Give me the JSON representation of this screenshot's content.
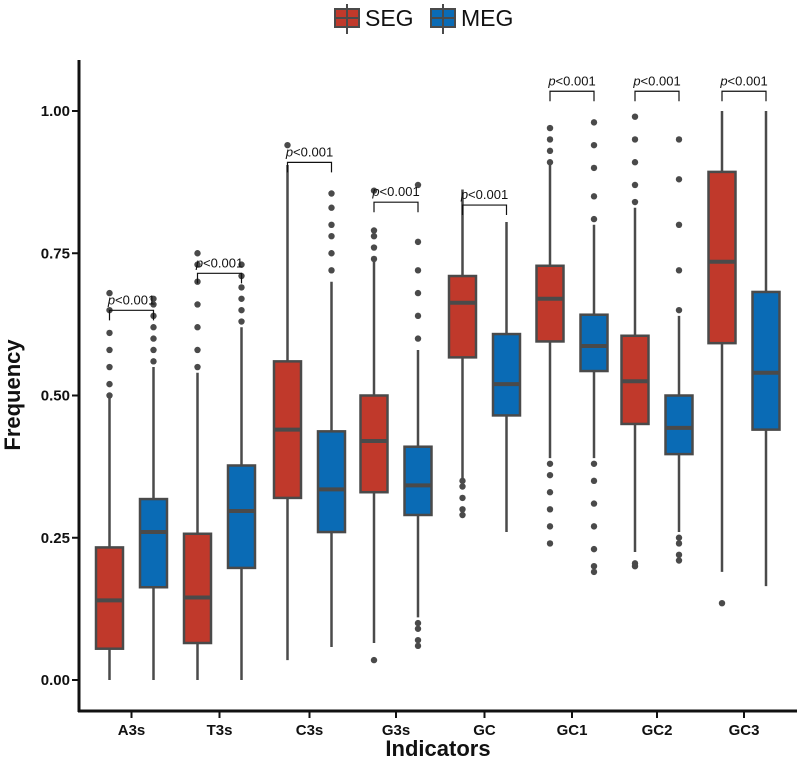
{
  "colors": {
    "SEG": "#c0392b",
    "MEG": "#0a6bb5",
    "line": "#4a4a4a",
    "axis": "#111111"
  },
  "legend": {
    "items": [
      {
        "label": "SEG",
        "color": "#c0392b"
      },
      {
        "label": "MEG",
        "color": "#0a6bb5"
      }
    ]
  },
  "chart_data": {
    "type": "boxplot",
    "title": "",
    "xlabel": "Indicators",
    "ylabel": "Frequency",
    "ylim": [
      0,
      1.07
    ],
    "yticks": [
      0.0,
      0.25,
      0.5,
      0.75,
      1.0
    ],
    "ytick_labels": [
      "0.00",
      "0.25",
      "0.50",
      "0.75",
      "1.00"
    ],
    "categories": [
      "A3s",
      "T3s",
      "C3s",
      "G3s",
      "GC",
      "GC1",
      "GC2",
      "GC3"
    ],
    "significance_label": "p<0.001",
    "series": [
      {
        "name": "SEG",
        "boxes": [
          {
            "min": 0.0,
            "q1": 0.055,
            "median": 0.14,
            "q3": 0.233,
            "max": 0.495,
            "outliers": [
              0.5,
              0.52,
              0.55,
              0.58,
              0.61,
              0.65,
              0.68
            ]
          },
          {
            "min": 0.0,
            "q1": 0.065,
            "median": 0.145,
            "q3": 0.257,
            "max": 0.54,
            "outliers": [
              0.55,
              0.58,
              0.62,
              0.66,
              0.7,
              0.73,
              0.75
            ]
          },
          {
            "min": 0.035,
            "q1": 0.32,
            "median": 0.44,
            "q3": 0.56,
            "max": 0.905,
            "outliers": [
              0.94
            ]
          },
          {
            "min": 0.065,
            "q1": 0.33,
            "median": 0.42,
            "q3": 0.5,
            "max": 0.735,
            "outliers": [
              0.035,
              0.74,
              0.76,
              0.78,
              0.79,
              0.86
            ]
          },
          {
            "min": 0.355,
            "q1": 0.567,
            "median": 0.663,
            "q3": 0.71,
            "max": 0.862,
            "outliers": [
              0.29,
              0.3,
              0.32,
              0.34,
              0.35
            ]
          },
          {
            "min": 0.39,
            "q1": 0.595,
            "median": 0.67,
            "q3": 0.728,
            "max": 0.905,
            "outliers": [
              0.24,
              0.27,
              0.3,
              0.33,
              0.36,
              0.38,
              0.91,
              0.93,
              0.95,
              0.97
            ]
          },
          {
            "min": 0.225,
            "q1": 0.45,
            "median": 0.525,
            "q3": 0.605,
            "max": 0.83,
            "outliers": [
              0.2,
              0.205,
              0.84,
              0.87,
              0.91,
              0.95,
              0.99
            ]
          },
          {
            "min": 0.19,
            "q1": 0.592,
            "median": 0.735,
            "q3": 0.893,
            "max": 1.0,
            "outliers": [
              0.135
            ]
          }
        ]
      },
      {
        "name": "MEG",
        "boxes": [
          {
            "min": 0.0,
            "q1": 0.163,
            "median": 0.26,
            "q3": 0.318,
            "max": 0.55,
            "outliers": [
              0.56,
              0.58,
              0.6,
              0.62,
              0.64,
              0.66,
              0.67
            ]
          },
          {
            "min": 0.0,
            "q1": 0.197,
            "median": 0.297,
            "q3": 0.377,
            "max": 0.62,
            "outliers": [
              0.63,
              0.65,
              0.67,
              0.69,
              0.71,
              0.73
            ]
          },
          {
            "min": 0.058,
            "q1": 0.26,
            "median": 0.335,
            "q3": 0.437,
            "max": 0.7,
            "outliers": [
              0.72,
              0.75,
              0.78,
              0.8,
              0.83,
              0.855
            ]
          },
          {
            "min": 0.11,
            "q1": 0.29,
            "median": 0.342,
            "q3": 0.41,
            "max": 0.58,
            "outliers": [
              0.06,
              0.07,
              0.09,
              0.1,
              0.6,
              0.64,
              0.68,
              0.72,
              0.77,
              0.87
            ]
          },
          {
            "min": 0.26,
            "q1": 0.465,
            "median": 0.52,
            "q3": 0.608,
            "max": 0.805,
            "outliers": []
          },
          {
            "min": 0.39,
            "q1": 0.543,
            "median": 0.587,
            "q3": 0.642,
            "max": 0.8,
            "outliers": [
              0.19,
              0.2,
              0.23,
              0.27,
              0.31,
              0.35,
              0.38,
              0.81,
              0.85,
              0.9,
              0.94,
              0.98
            ]
          },
          {
            "min": 0.26,
            "q1": 0.397,
            "median": 0.443,
            "q3": 0.5,
            "max": 0.64,
            "outliers": [
              0.21,
              0.22,
              0.24,
              0.25,
              0.65,
              0.72,
              0.8,
              0.88,
              0.95
            ]
          },
          {
            "min": 0.165,
            "q1": 0.44,
            "median": 0.54,
            "q3": 0.682,
            "max": 1.0,
            "outliers": []
          }
        ]
      }
    ],
    "brackets": [
      {
        "category": "A3s",
        "y": 0.72,
        "label": "p<0.001"
      },
      {
        "category": "T3s",
        "y": 0.785,
        "label": "p<0.001"
      },
      {
        "category": "C3s",
        "y": 0.98,
        "label": "p<0.001"
      },
      {
        "category": "G3s",
        "y": 0.91,
        "label": "p<0.001"
      },
      {
        "category": "GC",
        "y": 0.905,
        "label": "p<0.001"
      },
      {
        "category": "GC1",
        "y": 1.105,
        "label": "p<0.001"
      },
      {
        "category": "GC2",
        "y": 1.105,
        "label": "p<0.001"
      },
      {
        "category": "GC3",
        "y": 1.105,
        "label": "p<0.001"
      }
    ]
  }
}
